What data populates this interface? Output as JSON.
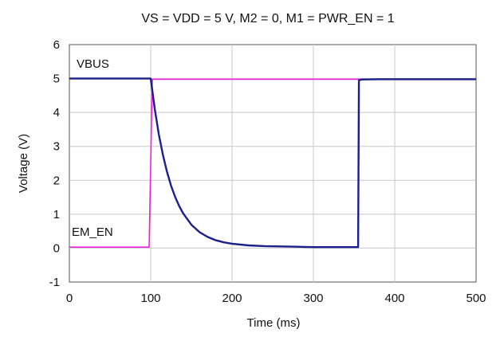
{
  "chart_data": {
    "type": "line",
    "title": "VS = VDD = 5 V, M2 = 0, M1 = PWR_EN = 1",
    "xlabel": "Time (ms)",
    "ylabel": "Voltage (V)",
    "xlim": [
      0,
      500
    ],
    "ylim": [
      -1,
      6
    ],
    "xticks": [
      0,
      100,
      200,
      300,
      400,
      500
    ],
    "yticks": [
      -1,
      0,
      1,
      2,
      3,
      4,
      5,
      6
    ],
    "grid": true,
    "legend": "none",
    "annotations": [
      "VBUS",
      "EM_EN"
    ],
    "series": [
      {
        "name": "VBUS",
        "color": "#1a1f8c",
        "x": [
          0,
          100,
          105,
          110,
          115,
          120,
          125,
          130,
          135,
          140,
          150,
          160,
          170,
          180,
          190,
          200,
          220,
          240,
          260,
          280,
          300,
          320,
          340,
          355,
          356,
          360,
          380,
          400,
          420,
          440,
          460,
          480,
          500
        ],
        "y": [
          5.0,
          5.0,
          4.1,
          3.35,
          2.75,
          2.25,
          1.84,
          1.51,
          1.24,
          1.02,
          0.69,
          0.47,
          0.33,
          0.23,
          0.17,
          0.13,
          0.08,
          0.06,
          0.05,
          0.04,
          0.03,
          0.03,
          0.03,
          0.03,
          4.95,
          4.97,
          4.98,
          4.98,
          4.98,
          4.98,
          4.98,
          4.98,
          4.98
        ]
      },
      {
        "name": "EM_EN",
        "color": "#ee22dd",
        "x": [
          0,
          98,
          100,
          102,
          500
        ],
        "y": [
          0.03,
          0.03,
          2.5,
          4.98,
          4.98
        ]
      }
    ]
  }
}
